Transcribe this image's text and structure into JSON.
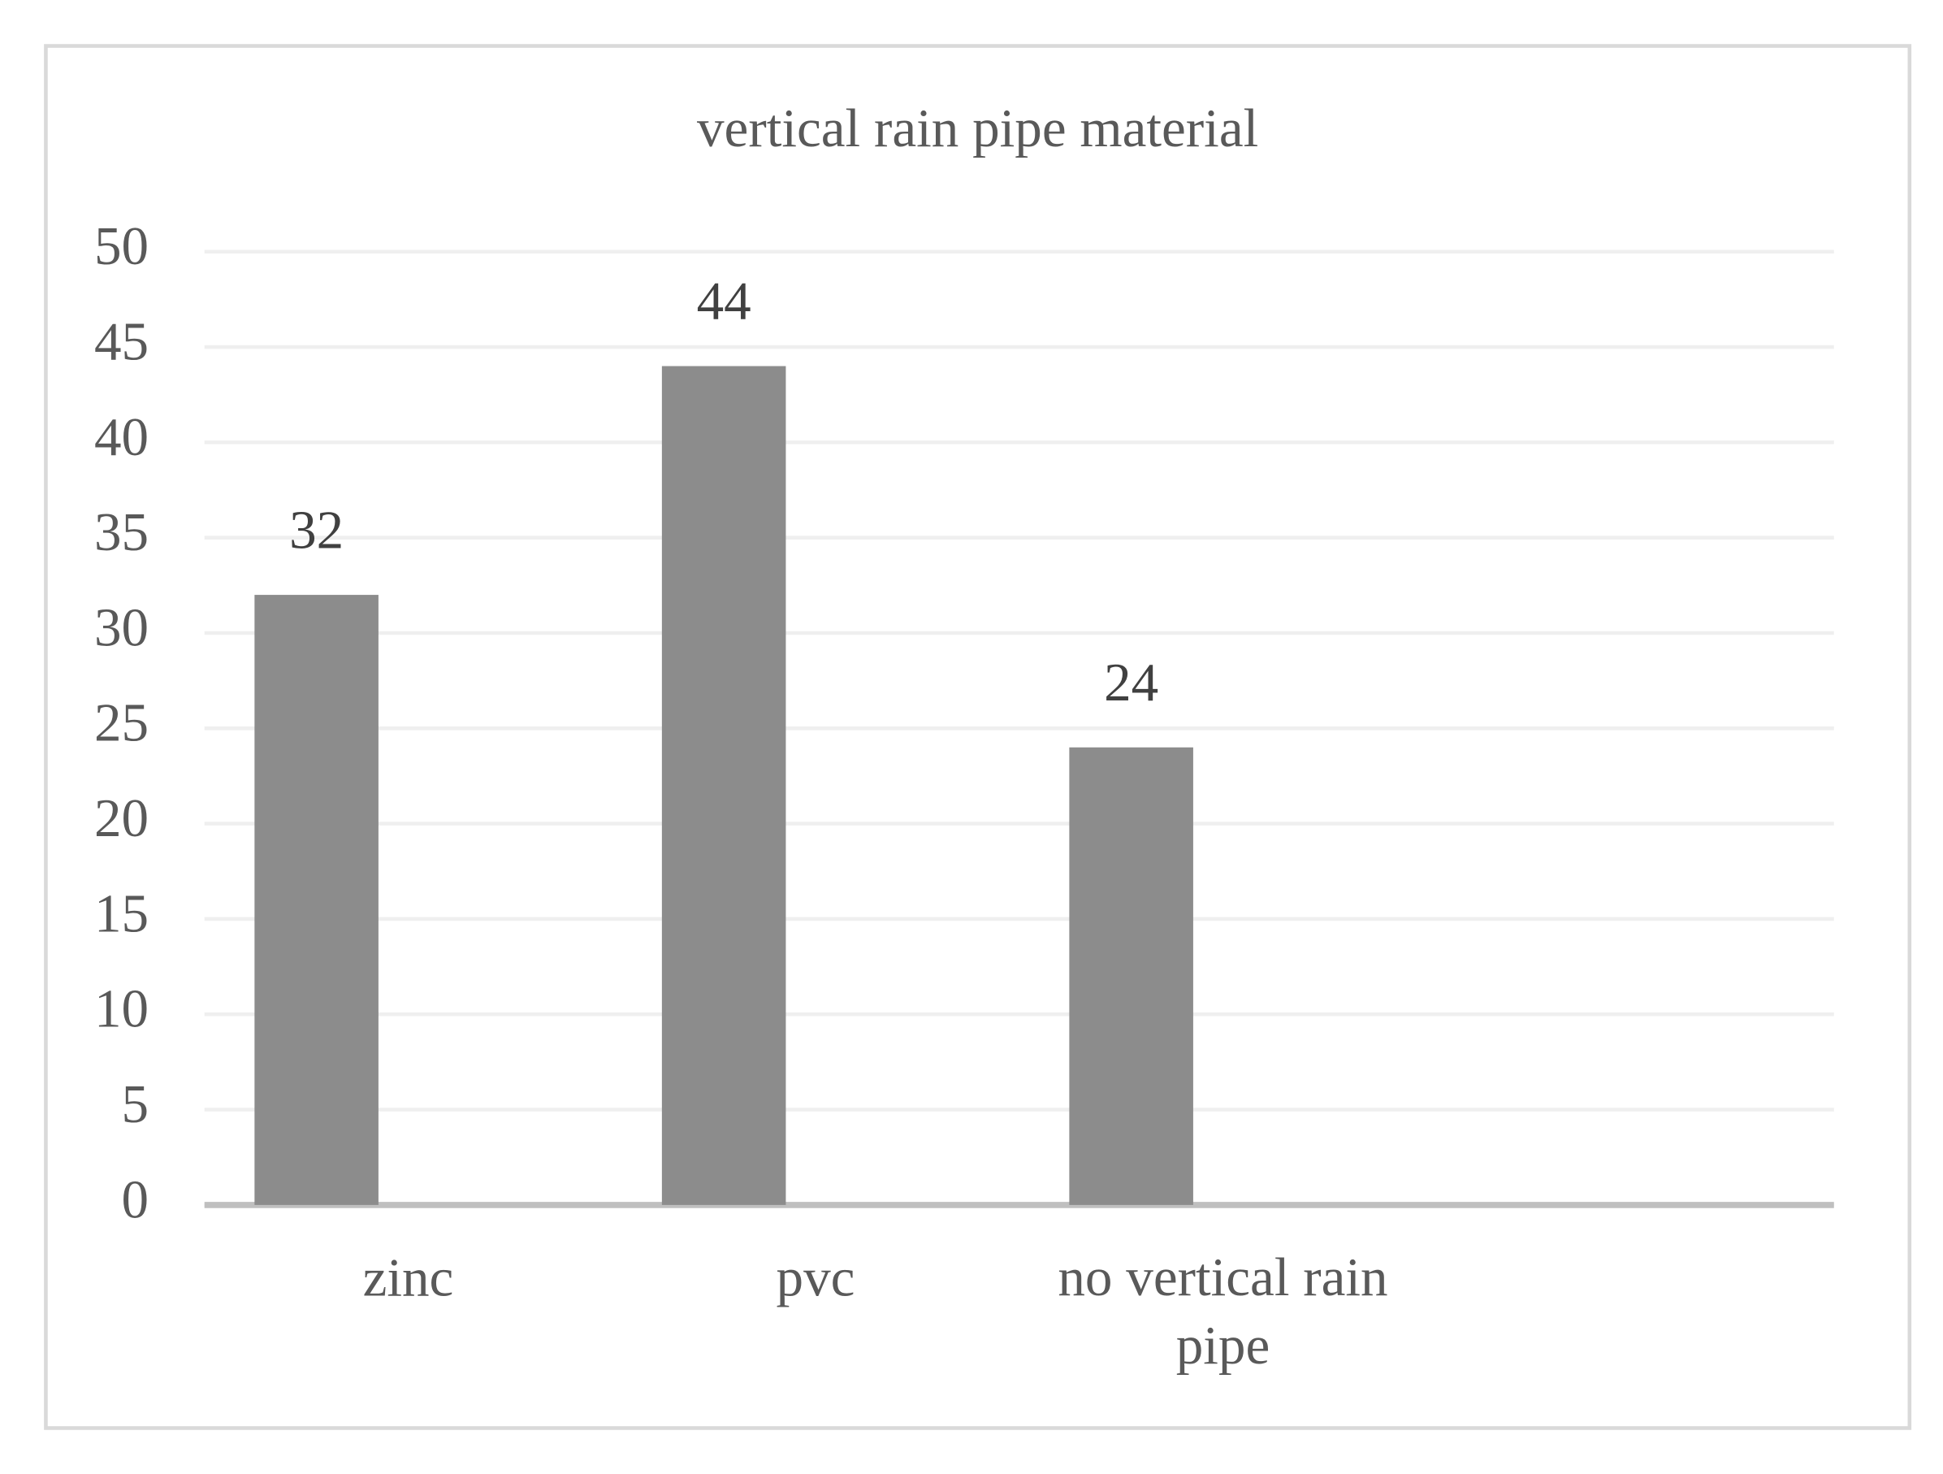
{
  "chart_data": {
    "type": "bar",
    "title": "vertical rain pipe material",
    "categories": [
      "zinc",
      "pvc",
      "no vertical rain pipe",
      null
    ],
    "values": [
      32,
      44,
      24,
      null
    ],
    "color": "#8c8c8c",
    "ylim": [
      0,
      50
    ],
    "yticks": [
      0,
      5,
      10,
      15,
      20,
      25,
      30,
      35,
      40,
      45,
      50
    ],
    "grid": true,
    "data_labels": true
  }
}
